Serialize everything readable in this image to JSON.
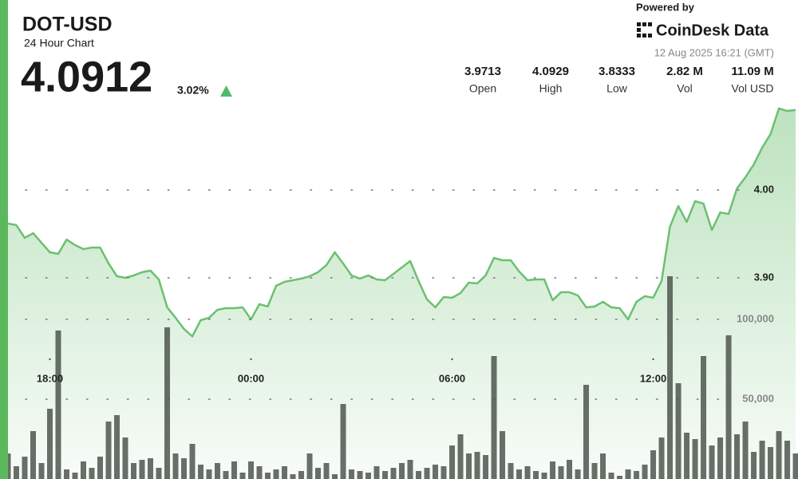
{
  "header": {
    "title": "DOT-USD",
    "subtitle": "24 Hour Chart",
    "price": "4.0912",
    "change": "3.02%",
    "powered_by": "Powered by",
    "brand": "CoinDesk Data",
    "timestamp": "12 Aug 2025 16:21 (GMT)",
    "stats": [
      {
        "value": "3.9713",
        "label": "Open"
      },
      {
        "value": "4.0929",
        "label": "High"
      },
      {
        "value": "3.8333",
        "label": "Low"
      },
      {
        "value": "2.82 M",
        "label": "Vol"
      },
      {
        "value": "11.09 M",
        "label": "Vol USD"
      }
    ]
  },
  "chart_data": {
    "type": "line",
    "x": [
      16.75,
      17,
      17.25,
      17.5,
      17.75,
      18,
      18.25,
      18.5,
      18.75,
      19,
      19.25,
      19.5,
      19.75,
      20,
      20.25,
      20.5,
      20.75,
      21,
      21.25,
      21.5,
      21.75,
      22,
      22.25,
      22.5,
      22.75,
      23,
      23.25,
      23.5,
      23.75,
      24,
      24.25,
      24.5,
      24.75,
      25,
      25.25,
      25.5,
      25.75,
      26,
      26.25,
      26.5,
      26.75,
      27,
      27.25,
      27.5,
      27.75,
      28,
      28.25,
      28.5,
      28.75,
      29,
      29.25,
      29.5,
      29.75,
      30,
      30.25,
      30.5,
      30.75,
      31,
      31.25,
      31.5,
      31.75,
      32,
      32.25,
      32.5,
      32.75,
      33,
      33.25,
      33.5,
      33.75,
      34,
      34.25,
      34.5,
      34.75,
      35,
      35.25,
      35.5,
      35.75,
      36,
      36.25,
      36.5,
      36.75,
      37,
      37.25,
      37.5,
      37.75,
      38,
      38.25,
      38.5,
      38.75,
      39,
      39.25,
      39.5,
      39.75,
      40,
      40.25
    ],
    "series": [
      {
        "type": "line",
        "color": "#6cc070",
        "values": [
          3.9618,
          3.96,
          3.9455,
          3.9509,
          3.94,
          3.9291,
          3.9273,
          3.9436,
          3.9373,
          3.9327,
          3.9345,
          3.9345,
          3.9164,
          3.9018,
          3.9,
          3.9027,
          3.9064,
          3.9082,
          3.8982,
          3.8664,
          3.8545,
          3.8418,
          3.8333,
          3.8518,
          3.8545,
          3.8636,
          3.8655,
          3.8655,
          3.8664,
          3.8527,
          3.87,
          3.8673,
          3.8909,
          3.8955,
          3.8973,
          3.8991,
          3.9018,
          3.9064,
          3.9145,
          3.9291,
          3.9164,
          3.9027,
          3.8991,
          3.9027,
          3.8982,
          3.8973,
          3.9045,
          3.9118,
          3.9191,
          3.8964,
          3.8755,
          3.8664,
          3.8782,
          3.8773,
          3.8827,
          3.8945,
          3.8936,
          3.9027,
          3.9227,
          3.92,
          3.92,
          3.9073,
          3.8973,
          3.8982,
          3.8982,
          3.8745,
          3.8836,
          3.8836,
          3.88,
          3.8664,
          3.8673,
          3.8727,
          3.8664,
          3.8655,
          3.8527,
          3.8727,
          3.8791,
          3.8773,
          3.8964,
          3.9582,
          3.9818,
          3.9636,
          3.9873,
          3.9845,
          3.9545,
          3.9745,
          3.9727,
          4.0018,
          4.0145,
          4.0291,
          4.0482,
          4.0636,
          4.0929,
          4.09,
          4.0912
        ]
      },
      {
        "type": "bar",
        "axis": "y2",
        "color": "#4d564d",
        "values": [
          16000,
          8000,
          14000,
          30000,
          10000,
          44000,
          93000,
          6000,
          4000,
          11000,
          7000,
          14000,
          36000,
          40000,
          26000,
          10000,
          12000,
          13000,
          7000,
          95000,
          16000,
          13000,
          22000,
          9000,
          6000,
          10000,
          5000,
          11000,
          4000,
          11000,
          8000,
          4000,
          6000,
          8000,
          3000,
          5000,
          16000,
          7000,
          10000,
          3000,
          47000,
          6000,
          5000,
          4000,
          8000,
          5000,
          7000,
          10000,
          12000,
          5000,
          7000,
          9000,
          8000,
          21000,
          28000,
          16000,
          17000,
          15000,
          77000,
          30000,
          10000,
          6000,
          8000,
          5000,
          4000,
          11000,
          8000,
          12000,
          6000,
          59000,
          10000,
          16000,
          4000,
          2000,
          6000,
          5000,
          9000,
          18000,
          26000,
          127000,
          60000,
          29000,
          25000,
          77000,
          21000,
          26000,
          90000,
          28000,
          36000,
          17000,
          24000,
          20000,
          30000,
          24000,
          16000
        ]
      }
    ],
    "xlim": [
      16.75,
      40.32
    ],
    "xticks": [
      {
        "value": 18,
        "label": "18:00"
      },
      {
        "value": 24,
        "label": "00:00"
      },
      {
        "value": 30,
        "label": "06:00"
      },
      {
        "value": 36,
        "label": "12:00"
      }
    ],
    "ylim": [
      3.6709,
      4.1073
    ],
    "yticks": [
      {
        "value": 3.9,
        "label": "3.90"
      },
      {
        "value": 4,
        "label": "4.00"
      }
    ],
    "y2lim": [
      0,
      240000
    ],
    "y2ticks": [
      {
        "value": 50000,
        "label": "50,000"
      },
      {
        "value": 100000,
        "label": "100,000"
      }
    ],
    "grid": true
  }
}
